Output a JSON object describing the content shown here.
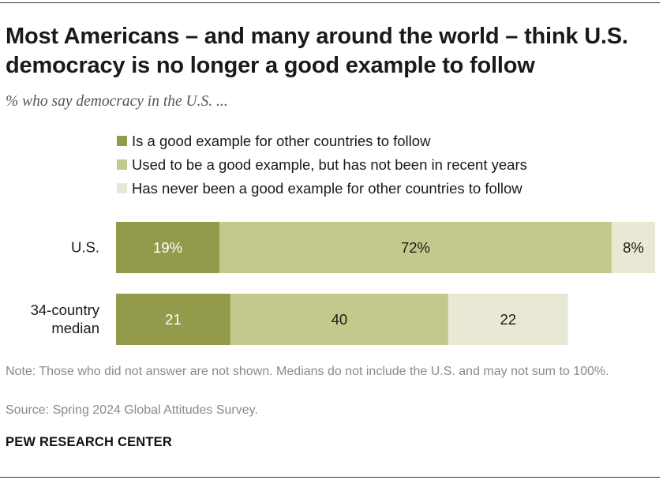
{
  "chart_data": {
    "type": "bar",
    "orientation": "horizontal",
    "stacked": true,
    "title": "Most Americans – and many around the world – think U.S. democracy is no longer a good example to follow",
    "subtitle": "% who say democracy in the U.S. ...",
    "categories": [
      "U.S.",
      "34-country median"
    ],
    "category_lines": [
      [
        "U.S."
      ],
      [
        "34-country",
        "median"
      ]
    ],
    "series": [
      {
        "name": "Is a good example for other countries to follow",
        "values": [
          19,
          21
        ],
        "labels": [
          "19%",
          "21"
        ],
        "color": "#949a4b"
      },
      {
        "name": "Used to be a good example, but has not been in recent years",
        "values": [
          72,
          40
        ],
        "labels": [
          "72%",
          "40"
        ],
        "color": "#c3c98d"
      },
      {
        "name": "Has never been a good example for other countries to follow",
        "values": [
          8,
          22
        ],
        "labels": [
          "8%",
          "22"
        ],
        "color": "#e8e8d4"
      }
    ],
    "xlim": [
      0,
      100
    ],
    "grid": false,
    "legend_position": "top"
  },
  "note": "Note: Those who did not answer are not shown. Medians do not include the U.S. and may not sum to 100%.",
  "source": "Source: Spring 2024 Global Attitudes Survey.",
  "organization": "PEW RESEARCH CENTER"
}
